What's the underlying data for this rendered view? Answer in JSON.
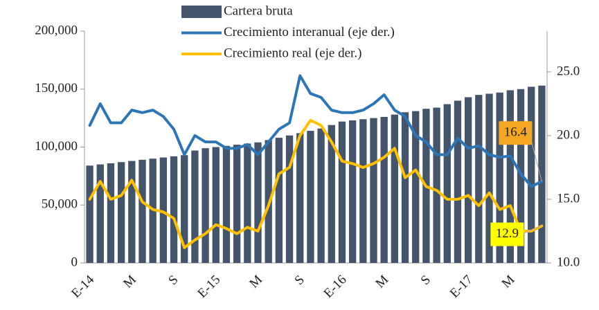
{
  "chart_data": {
    "type": "bar-line",
    "categories": [
      "E-14",
      null,
      null,
      null,
      "M",
      null,
      null,
      null,
      "S",
      null,
      null,
      null,
      "E-15",
      null,
      null,
      null,
      "M",
      null,
      null,
      null,
      "S",
      null,
      null,
      null,
      "E-16",
      null,
      null,
      null,
      "M",
      null,
      null,
      null,
      "S",
      null,
      null,
      null,
      "E-17",
      null,
      null,
      null,
      "M",
      null,
      null,
      null
    ],
    "series": [
      {
        "name": "Cartera bruta",
        "type": "bar",
        "color": "#44546a",
        "values": [
          84000,
          85000,
          86000,
          87000,
          88000,
          89000,
          90000,
          91000,
          92000,
          93000,
          97000,
          99000,
          100000,
          101000,
          102000,
          103000,
          104000,
          106000,
          108000,
          110000,
          112000,
          114000,
          116000,
          119000,
          122000,
          123000,
          124000,
          125000,
          126000,
          128000,
          130000,
          131000,
          133000,
          134000,
          137000,
          140000,
          143000,
          145000,
          146000,
          147000,
          149000,
          150000,
          152000,
          153000
        ]
      },
      {
        "name": "Crecimiento interanual (eje der.)",
        "type": "line",
        "axis": "y2",
        "color": "#2e75b6",
        "label_color": "#f5a623",
        "labeled_point": 43,
        "values": [
          20.8,
          22.5,
          21.0,
          21.0,
          22.0,
          21.8,
          22.0,
          21.5,
          20.5,
          18.5,
          20.0,
          19.5,
          19.5,
          19.0,
          19.0,
          19.3,
          18.5,
          19.5,
          20.5,
          21.0,
          24.7,
          23.3,
          23.0,
          22.0,
          21.8,
          21.8,
          22.0,
          22.5,
          23.2,
          22.0,
          21.5,
          20.0,
          19.5,
          18.5,
          18.5,
          19.8,
          19.0,
          19.2,
          18.5,
          18.3,
          18.4,
          17.0,
          16.0,
          16.4
        ]
      },
      {
        "name": "Crecimiento real (eje der.)",
        "type": "line",
        "axis": "y2",
        "color": "#ffc000",
        "label_color": "#ffff00",
        "labeled_point": 43,
        "values": [
          15.0,
          16.4,
          15.0,
          15.3,
          16.5,
          14.8,
          14.2,
          14.0,
          13.5,
          11.2,
          11.8,
          12.3,
          13.0,
          12.7,
          12.3,
          12.8,
          12.5,
          14.5,
          17.0,
          17.5,
          20.0,
          21.2,
          20.8,
          19.5,
          18.0,
          17.8,
          17.5,
          17.8,
          18.3,
          19.0,
          16.7,
          17.3,
          16.0,
          15.7,
          15.0,
          15.0,
          15.3,
          14.5,
          15.5,
          14.2,
          14.5,
          12.5,
          12.5,
          12.9
        ]
      }
    ],
    "ylim": [
      0,
      200000
    ],
    "yticks": [
      {
        "value": 0,
        "label": "0"
      },
      {
        "value": 50000,
        "label": "50,000"
      },
      {
        "value": 100000,
        "label": "100,000"
      },
      {
        "value": 150000,
        "label": "150,000"
      },
      {
        "value": 200000,
        "label": "200,000"
      }
    ],
    "y2lim": [
      10,
      28.2
    ],
    "y2ticks": [
      {
        "value": 10,
        "label": "10.0"
      },
      {
        "value": 15,
        "label": "15.0"
      },
      {
        "value": 20,
        "label": "20.0"
      },
      {
        "value": 25,
        "label": "25.0"
      }
    ],
    "grid": false
  }
}
